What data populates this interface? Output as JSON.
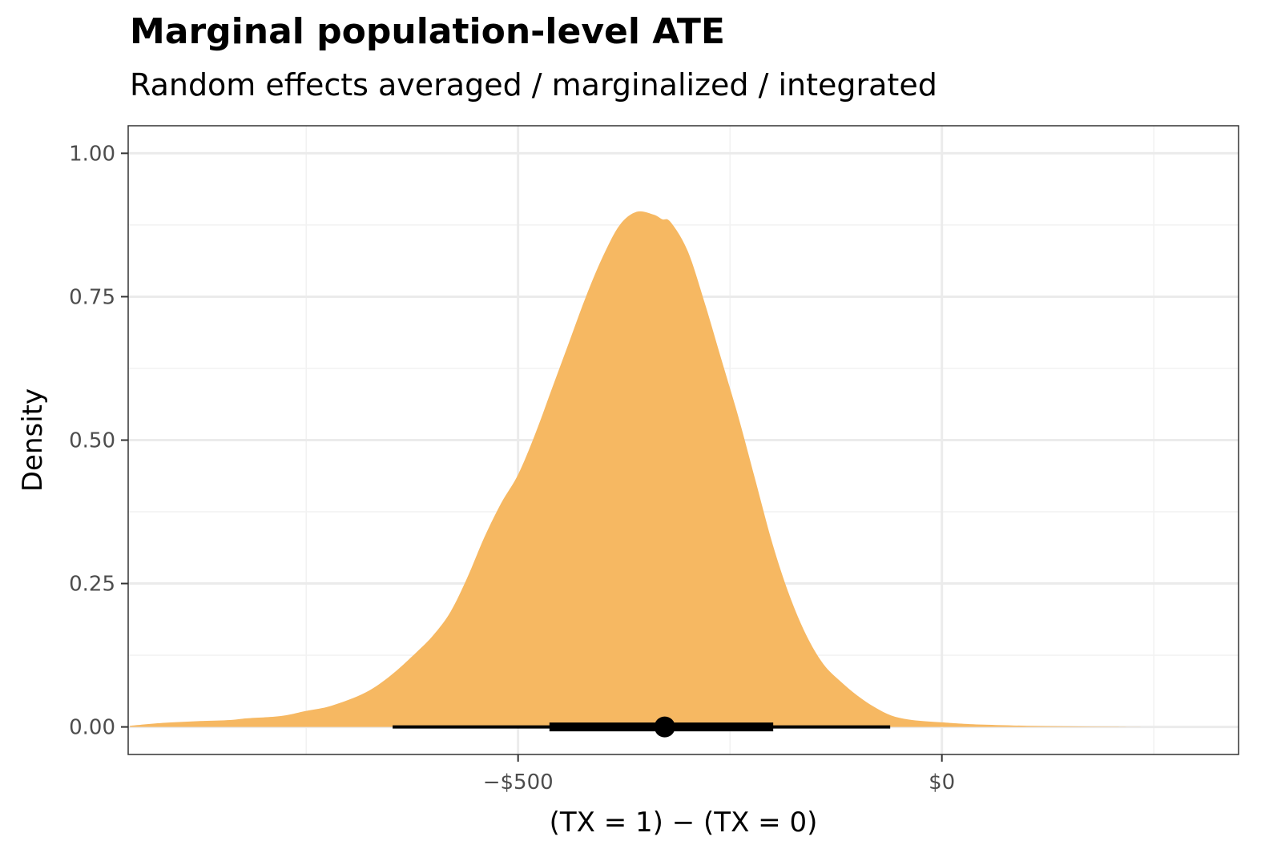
{
  "title": "Marginal population-level ATE",
  "subtitle": "Random effects averaged / marginalized / integrated",
  "chart_data": {
    "type": "area",
    "title": "Marginal population-level ATE",
    "subtitle": "Random effects averaged / marginalized / integrated",
    "xlabel": "(TX = 1) − (TX = 0)",
    "ylabel": "Density",
    "xlim": [
      -960,
      350
    ],
    "ylim": [
      -0.048,
      1.048
    ],
    "x_ticks": [
      -500,
      0
    ],
    "x_tick_labels": [
      "−$500",
      "$0"
    ],
    "y_ticks": [
      0,
      0.25,
      0.5,
      0.75,
      1.0
    ],
    "y_tick_labels": [
      "0.00",
      "0.25",
      "0.50",
      "0.75",
      "1.00"
    ],
    "grid": true,
    "fill_color": "#F6B862",
    "density": {
      "x": [
        -958,
        -920,
        -880,
        -840,
        -820,
        -780,
        -750,
        -720,
        -680,
        -650,
        -620,
        -600,
        -580,
        -560,
        -540,
        -520,
        -500,
        -480,
        -460,
        -440,
        -420,
        -400,
        -380,
        -360,
        -340,
        -330,
        -320,
        -300,
        -280,
        -260,
        -240,
        -220,
        -200,
        -180,
        -160,
        -140,
        -120,
        -100,
        -80,
        -60,
        -40,
        -20,
        0,
        20,
        50,
        100,
        150,
        200,
        250
      ],
      "y": [
        0.002,
        0.007,
        0.01,
        0.012,
        0.015,
        0.019,
        0.028,
        0.037,
        0.06,
        0.09,
        0.13,
        0.16,
        0.2,
        0.26,
        0.33,
        0.39,
        0.44,
        0.51,
        0.59,
        0.67,
        0.75,
        0.82,
        0.875,
        0.898,
        0.893,
        0.885,
        0.88,
        0.83,
        0.74,
        0.64,
        0.54,
        0.43,
        0.32,
        0.23,
        0.16,
        0.11,
        0.08,
        0.055,
        0.035,
        0.02,
        0.013,
        0.01,
        0.008,
        0.006,
        0.004,
        0.002,
        0.001,
        0.0005,
        0.0
      ]
    },
    "point_interval": {
      "point": -327,
      "inner": [
        -463,
        -199
      ],
      "outer": [
        -648,
        -61
      ],
      "color": "#000000"
    }
  }
}
